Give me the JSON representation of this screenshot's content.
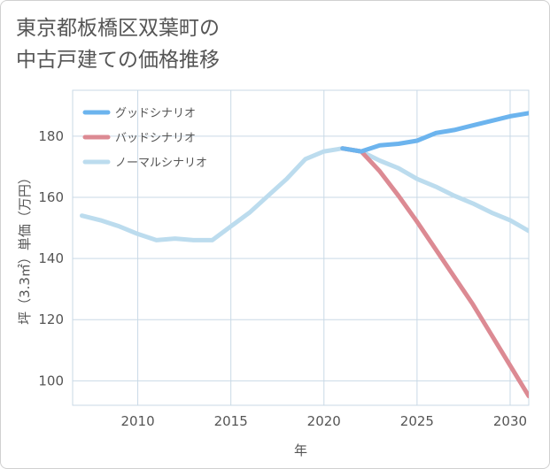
{
  "title": "東京都板橋区双葉町の\n中古戸建ての価格推移",
  "chart_data": {
    "type": "line",
    "title": "東京都板橋区双葉町の中古戸建ての価格推移",
    "xlabel": "年",
    "ylabel": "坪（3.3㎡）単価（万円）",
    "xlim": [
      2006.5,
      2031
    ],
    "ylim": [
      92,
      195
    ],
    "xticks": [
      2010,
      2015,
      2020,
      2025,
      2030
    ],
    "yticks": [
      100,
      120,
      140,
      160,
      180
    ],
    "grid": true,
    "legend_position": "top-left",
    "series": [
      {
        "name": "グッドシナリオ",
        "color": "#6cb4ee",
        "x": [
          2021,
          2022,
          2023,
          2024,
          2025,
          2026,
          2027,
          2028,
          2029,
          2030,
          2031
        ],
        "y": [
          176,
          175,
          177,
          177.5,
          178.5,
          181,
          182,
          183.5,
          185,
          186.5,
          187.5
        ]
      },
      {
        "name": "バッドシナリオ",
        "color": "#dc8a93",
        "x": [
          2021,
          2022,
          2023,
          2024,
          2025,
          2026,
          2027,
          2028,
          2029,
          2030,
          2031
        ],
        "y": [
          176,
          175,
          168.5,
          160.5,
          152,
          143,
          134,
          125,
          115,
          105,
          95
        ]
      },
      {
        "name": "ノーマルシナリオ",
        "color": "#bcdcee",
        "x": [
          2007,
          2008,
          2009,
          2010,
          2011,
          2012,
          2013,
          2014,
          2015,
          2016,
          2017,
          2018,
          2019,
          2020,
          2021,
          2022,
          2023,
          2024,
          2025,
          2026,
          2027,
          2028,
          2029,
          2030,
          2031
        ],
        "y": [
          154,
          152.5,
          150.5,
          148,
          146,
          146.5,
          146,
          146,
          150.5,
          155,
          160.5,
          166,
          172.5,
          175,
          176,
          175,
          172,
          169.5,
          166,
          163.5,
          160.5,
          158,
          155,
          152.5,
          149
        ]
      }
    ]
  }
}
